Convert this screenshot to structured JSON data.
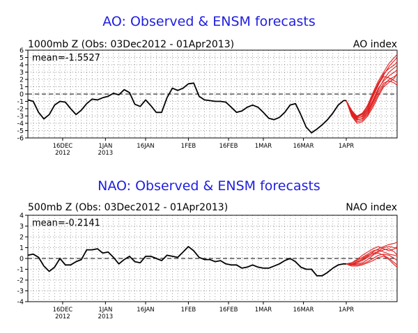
{
  "chart_data": [
    {
      "type": "line",
      "title": "AO: Observed & ENSM forecasts",
      "subtitle": "1000mb Z (Obs: 03Dec2012 - 01Apr2013)",
      "index_label": "AO index",
      "mean_text": "mean=-1.5527",
      "ylim": [
        -6,
        6
      ],
      "yticks": [
        6,
        5,
        4,
        3,
        2,
        1,
        0,
        -1,
        -2,
        -3,
        -4,
        -5,
        -6
      ],
      "xlim": [
        0,
        138
      ],
      "xticks": [
        {
          "day": 13,
          "label": "16DEC",
          "label2": "2012"
        },
        {
          "day": 29,
          "label": "1JAN",
          "label2": "2013"
        },
        {
          "day": 44,
          "label": "16JAN",
          "label2": ""
        },
        {
          "day": 60,
          "label": "1FEB",
          "label2": ""
        },
        {
          "day": 75,
          "label": "16FEB",
          "label2": ""
        },
        {
          "day": 88,
          "label": "1MAR",
          "label2": ""
        },
        {
          "day": 103,
          "label": "16MAR",
          "label2": ""
        },
        {
          "day": 119,
          "label": "1APR",
          "label2": ""
        }
      ],
      "series": [
        {
          "color": "#000000",
          "x": [
            0,
            2,
            4,
            6,
            8,
            10,
            12,
            14,
            16,
            18,
            20,
            22,
            24,
            26,
            28,
            30,
            32,
            34,
            36,
            38,
            40,
            42,
            44,
            46,
            48,
            50,
            52,
            54,
            56,
            58,
            60,
            62,
            64,
            66,
            68,
            70,
            72,
            74,
            76,
            78,
            80,
            82,
            84,
            86,
            88,
            90,
            92,
            94,
            96,
            98,
            100,
            102,
            104,
            106,
            108,
            110,
            112,
            114,
            116,
            118,
            119
          ],
          "values": [
            -0.8,
            -1.0,
            -2.5,
            -3.4,
            -2.8,
            -1.5,
            -1.0,
            -1.1,
            -2.0,
            -2.8,
            -2.2,
            -1.3,
            -0.7,
            -0.8,
            -0.5,
            -0.3,
            0.1,
            -0.1,
            0.6,
            0.2,
            -1.4,
            -1.7,
            -0.8,
            -1.6,
            -2.5,
            -2.5,
            -0.5,
            0.8,
            0.5,
            0.8,
            1.4,
            1.5,
            -0.3,
            -0.8,
            -0.9,
            -1.0,
            -1.0,
            -1.1,
            -1.8,
            -2.5,
            -2.3,
            -1.8,
            -1.5,
            -1.8,
            -2.5,
            -3.3,
            -3.5,
            -3.2,
            -2.5,
            -1.5,
            -1.3,
            -2.8,
            -4.5,
            -5.3,
            -4.8,
            -4.2,
            -3.5,
            -2.6,
            -1.5,
            -0.9,
            -0.9
          ]
        },
        {
          "color": "#e02020",
          "x": [
            119,
            121,
            123,
            125,
            127,
            129,
            131,
            133,
            135,
            137,
            138
          ],
          "values": [
            -0.9,
            -2.2,
            -3.1,
            -2.7,
            -1.5,
            0.2,
            1.8,
            3.0,
            4.2,
            5.0,
            5.4
          ]
        },
        {
          "color": "#e02020",
          "x": [
            119,
            121,
            123,
            125,
            127,
            129,
            131,
            133,
            135,
            137,
            138
          ],
          "values": [
            -0.9,
            -2.6,
            -3.4,
            -3.0,
            -2.0,
            -0.4,
            1.2,
            2.6,
            3.8,
            4.6,
            5.0
          ]
        },
        {
          "color": "#e02020",
          "x": [
            119,
            121,
            123,
            125,
            127,
            129,
            131,
            133,
            135,
            137,
            138
          ],
          "values": [
            -0.9,
            -2.8,
            -3.6,
            -3.3,
            -2.4,
            -1.0,
            0.6,
            2.0,
            3.0,
            3.6,
            3.9
          ]
        },
        {
          "color": "#e02020",
          "x": [
            119,
            121,
            123,
            125,
            127,
            129,
            131,
            133,
            135,
            137,
            138
          ],
          "values": [
            -0.9,
            -2.5,
            -3.3,
            -3.1,
            -2.2,
            -0.8,
            0.8,
            1.8,
            2.5,
            3.0,
            3.3
          ]
        },
        {
          "color": "#e02020",
          "x": [
            119,
            121,
            123,
            125,
            127,
            129,
            131,
            133,
            135,
            137,
            138
          ],
          "values": [
            -0.9,
            -2.9,
            -3.8,
            -3.6,
            -2.8,
            -1.5,
            0.0,
            1.2,
            2.0,
            2.4,
            2.7
          ]
        },
        {
          "color": "#e02020",
          "x": [
            119,
            121,
            123,
            125,
            127,
            129,
            131,
            133,
            135,
            137,
            138
          ],
          "values": [
            -0.9,
            -2.4,
            -3.2,
            -2.8,
            -1.8,
            -0.2,
            1.4,
            2.4,
            2.2,
            1.8,
            1.6
          ]
        },
        {
          "color": "#e02020",
          "x": [
            119,
            121,
            123,
            125,
            127,
            129,
            131,
            133,
            135,
            137,
            138
          ],
          "values": [
            -0.9,
            -2.7,
            -3.5,
            -3.4,
            -2.6,
            -1.2,
            0.3,
            1.5,
            1.8,
            1.5,
            1.2
          ]
        },
        {
          "color": "#e02020",
          "x": [
            119,
            121,
            123,
            125,
            127,
            129,
            131,
            133,
            135,
            137,
            138
          ],
          "values": [
            -0.9,
            -3.0,
            -4.0,
            -3.8,
            -3.0,
            -1.8,
            -0.3,
            1.0,
            1.6,
            2.2,
            2.8
          ]
        },
        {
          "color": "#e02020",
          "x": [
            119,
            121,
            123,
            125,
            127,
            129,
            131,
            133,
            135,
            137,
            138
          ],
          "values": [
            -0.9,
            -2.3,
            -3.0,
            -2.6,
            -1.6,
            0.0,
            1.5,
            2.8,
            3.5,
            4.0,
            4.4
          ]
        }
      ]
    },
    {
      "type": "line",
      "title": "NAO: Observed & ENSM forecasts",
      "subtitle": "500mb Z (Obs: 03Dec2012 - 01Apr2013)",
      "index_label": "NAO index",
      "mean_text": "mean=-0.2141",
      "ylim": [
        -4,
        4
      ],
      "yticks": [
        4,
        3,
        2,
        1,
        0,
        -1,
        -2,
        -3,
        -4
      ],
      "xlim": [
        0,
        138
      ],
      "xticks": [
        {
          "day": 13,
          "label": "16DEC",
          "label2": "2012"
        },
        {
          "day": 29,
          "label": "1JAN",
          "label2": "2013"
        },
        {
          "day": 44,
          "label": "16JAN",
          "label2": ""
        },
        {
          "day": 60,
          "label": "1FEB",
          "label2": ""
        },
        {
          "day": 75,
          "label": "16FEB",
          "label2": ""
        },
        {
          "day": 88,
          "label": "1MAR",
          "label2": ""
        },
        {
          "day": 103,
          "label": "16MAR",
          "label2": ""
        },
        {
          "day": 119,
          "label": "1APR",
          "label2": ""
        }
      ],
      "series": [
        {
          "color": "#000000",
          "x": [
            0,
            2,
            4,
            6,
            8,
            10,
            12,
            14,
            16,
            18,
            20,
            22,
            24,
            26,
            28,
            30,
            32,
            34,
            36,
            38,
            40,
            42,
            44,
            46,
            48,
            50,
            52,
            54,
            56,
            58,
            60,
            62,
            64,
            66,
            68,
            70,
            72,
            74,
            76,
            78,
            80,
            82,
            84,
            86,
            88,
            90,
            92,
            94,
            96,
            98,
            100,
            102,
            104,
            106,
            108,
            110,
            112,
            114,
            116,
            118,
            119
          ],
          "values": [
            0.3,
            0.4,
            0.1,
            -0.7,
            -1.2,
            -0.8,
            0.0,
            -0.6,
            -0.6,
            -0.3,
            -0.1,
            0.8,
            0.8,
            0.9,
            0.5,
            0.6,
            0.1,
            -0.5,
            -0.1,
            0.2,
            -0.3,
            -0.4,
            0.2,
            0.2,
            0.0,
            -0.2,
            0.3,
            0.2,
            0.1,
            0.6,
            1.1,
            0.7,
            0.1,
            -0.1,
            -0.1,
            -0.3,
            -0.2,
            -0.5,
            -0.6,
            -0.6,
            -0.9,
            -0.8,
            -0.6,
            -0.8,
            -0.9,
            -0.9,
            -0.7,
            -0.5,
            -0.2,
            0.0,
            -0.3,
            -0.8,
            -1.0,
            -1.0,
            -1.6,
            -1.6,
            -1.3,
            -0.9,
            -0.6,
            -0.5,
            -0.5
          ]
        },
        {
          "color": "#e02020",
          "x": [
            119,
            121,
            123,
            125,
            127,
            129,
            131,
            133,
            135,
            137,
            138
          ],
          "values": [
            -0.5,
            -0.5,
            -0.3,
            -0.1,
            0.2,
            0.6,
            0.9,
            1.1,
            1.3,
            1.4,
            1.5
          ]
        },
        {
          "color": "#e02020",
          "x": [
            119,
            121,
            123,
            125,
            127,
            129,
            131,
            133,
            135,
            137,
            138
          ],
          "values": [
            -0.5,
            -0.6,
            -0.5,
            -0.4,
            -0.1,
            0.3,
            0.7,
            1.0,
            1.1,
            1.0,
            0.9
          ]
        },
        {
          "color": "#e02020",
          "x": [
            119,
            121,
            123,
            125,
            127,
            129,
            131,
            133,
            135,
            137,
            138
          ],
          "values": [
            -0.5,
            -0.4,
            -0.2,
            0.1,
            0.4,
            0.7,
            0.8,
            0.6,
            0.4,
            0.3,
            0.2
          ]
        },
        {
          "color": "#e02020",
          "x": [
            119,
            121,
            123,
            125,
            127,
            129,
            131,
            133,
            135,
            137,
            138
          ],
          "values": [
            -0.5,
            -0.6,
            -0.6,
            -0.5,
            -0.3,
            0.0,
            0.3,
            0.4,
            0.3,
            0.0,
            -0.2
          ]
        },
        {
          "color": "#e02020",
          "x": [
            119,
            121,
            123,
            125,
            127,
            129,
            131,
            133,
            135,
            137,
            138
          ],
          "values": [
            -0.5,
            -0.5,
            -0.4,
            -0.2,
            0.1,
            0.4,
            0.5,
            0.3,
            0.0,
            -0.4,
            -0.6
          ]
        },
        {
          "color": "#e02020",
          "x": [
            119,
            121,
            123,
            125,
            127,
            129,
            131,
            133,
            135,
            137,
            138
          ],
          "values": [
            -0.5,
            -0.7,
            -0.7,
            -0.6,
            -0.4,
            -0.2,
            0.1,
            0.2,
            -0.1,
            -0.6,
            -0.8
          ]
        },
        {
          "color": "#e02020",
          "x": [
            119,
            121,
            123,
            125,
            127,
            129,
            131,
            133,
            135,
            137,
            138
          ],
          "values": [
            -0.5,
            -0.4,
            -0.1,
            0.3,
            0.6,
            0.9,
            1.1,
            0.9,
            0.7,
            0.9,
            1.1
          ]
        },
        {
          "color": "#e02020",
          "x": [
            119,
            121,
            123,
            125,
            127,
            129,
            131,
            133,
            135,
            137,
            138
          ],
          "values": [
            -0.5,
            -0.6,
            -0.4,
            0.0,
            0.3,
            0.5,
            0.6,
            0.8,
            0.9,
            0.6,
            0.3
          ]
        }
      ]
    }
  ]
}
